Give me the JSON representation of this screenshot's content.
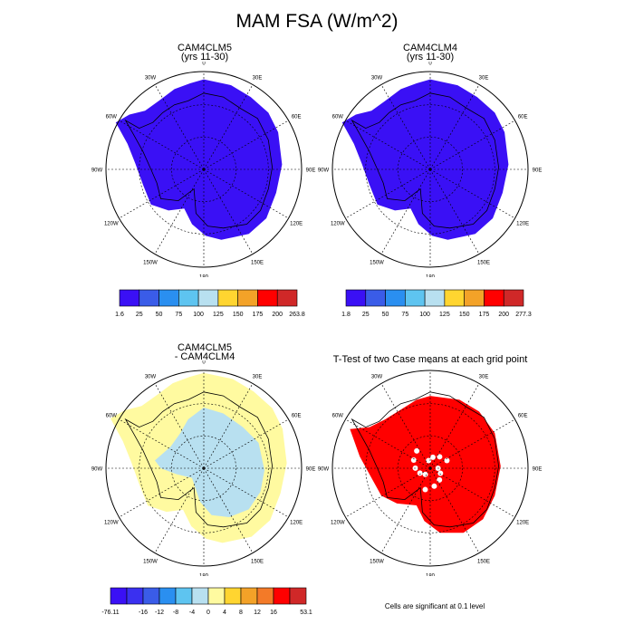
{
  "title": "MAM FSA (W/m^2)",
  "panels": [
    {
      "title_line1": "CAM4CLM5",
      "title_line2": "(yrs 11-30)"
    },
    {
      "title_line1": "CAM4CLM4",
      "title_line2": "(yrs 11-30)"
    },
    {
      "title_line1": "CAM4CLM5",
      "title_line2": "- CAM4CLM4"
    },
    {
      "title_line1": "T-Test of two Case means at each grid point",
      "title_line2": ""
    }
  ],
  "longitude_labels": [
    "0",
    "30E",
    "60E",
    "90E",
    "120E",
    "150E",
    "180",
    "150W",
    "120W",
    "90W",
    "60W",
    "30W"
  ],
  "colorbars": [
    {
      "labels": [
        "1.6",
        "25",
        "50",
        "75",
        "100",
        "125",
        "150",
        "175",
        "200",
        "263.8"
      ],
      "colors": [
        "#3a10f5",
        "#3a5ce8",
        "#2a8ff0",
        "#5ec4f0",
        "#b8e0f0",
        "#ffd530",
        "#f3a228",
        "#ff0000",
        "#d02828"
      ]
    },
    {
      "labels": [
        "1.8",
        "25",
        "50",
        "75",
        "100",
        "125",
        "150",
        "175",
        "200",
        "277.3"
      ],
      "colors": [
        "#3a10f5",
        "#3a5ce8",
        "#2a8ff0",
        "#5ec4f0",
        "#b8e0f0",
        "#ffd530",
        "#f3a228",
        "#ff0000",
        "#d02828"
      ]
    },
    {
      "labels": [
        "-76.11",
        "",
        "-16",
        "-12",
        "-8",
        "-4",
        "0",
        "4",
        "8",
        "12",
        "16",
        "",
        "53.1"
      ],
      "colors": [
        "#3a10f5",
        "#3a30f0",
        "#3a5ce8",
        "#2a8ff0",
        "#5ec4f0",
        "#b8e0f0",
        "#fffaa0",
        "#ffd530",
        "#f3a228",
        "#f37a28",
        "#ff0000",
        "#d02828"
      ]
    }
  ],
  "footnote": "Cells are significant at 0.1 level",
  "fill_colors": {
    "absolute": "#3a10f5",
    "diff_positive": "#fffaa0",
    "diff_negative": "#b8e0f0",
    "ttest": "#ff0000"
  }
}
